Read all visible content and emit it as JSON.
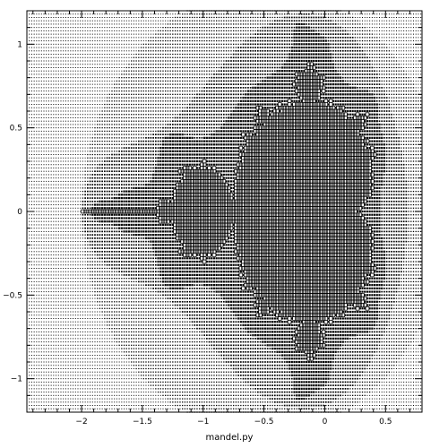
{
  "chart_data": {
    "type": "scatter",
    "title": "",
    "xlabel": "mandel.py",
    "ylabel": "",
    "xlim": [
      -2.45,
      0.8
    ],
    "ylim": [
      -1.2,
      1.2
    ],
    "x_ticks": [
      {
        "value": -2,
        "label": "−2"
      },
      {
        "value": -1.5,
        "label": "−1.5"
      },
      {
        "value": -1,
        "label": "−1"
      },
      {
        "value": -0.5,
        "label": "−0.5"
      },
      {
        "value": 0,
        "label": "0"
      },
      {
        "value": 0.5,
        "label": "0.5"
      }
    ],
    "y_ticks": [
      {
        "value": 1,
        "label": "1"
      },
      {
        "value": 0.5,
        "label": "0.5"
      },
      {
        "value": 0,
        "label": "0"
      },
      {
        "value": -0.5,
        "label": "−0.5"
      },
      {
        "value": -1,
        "label": "−1"
      }
    ],
    "grid": false,
    "series": [
      {
        "marker_color": "#000000",
        "max_iterations": 50,
        "sampling_step": 0.02,
        "marker_size_encodes": "escape iteration count (larger = slower escape, boxes = inside set)"
      }
    ]
  }
}
